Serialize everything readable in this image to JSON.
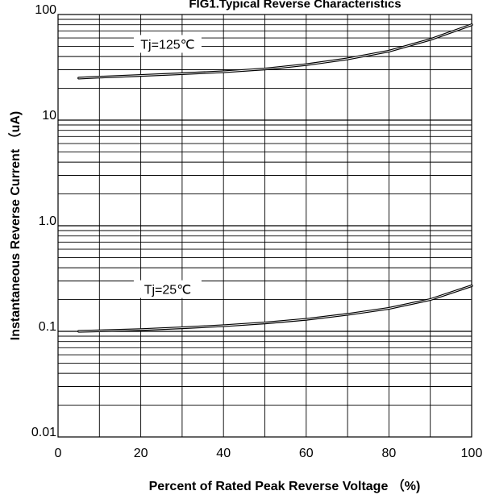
{
  "chart_data": {
    "type": "line",
    "title": "FIG1.Typical Reverse Characteristics",
    "xlabel": "Percent of Rated Peak Reverse Voltage （%)",
    "ylabel": "Instantaneous Reverse Current （uA)",
    "x_scale": "linear",
    "y_scale": "log",
    "xlim": [
      0,
      100
    ],
    "ylim": [
      0.01,
      100
    ],
    "x_ticks": [
      "0",
      "20",
      "40",
      "60",
      "80",
      "100"
    ],
    "y_ticks": [
      "0.01",
      "0.1",
      "1.0",
      "10",
      "100"
    ],
    "grid": true,
    "series": [
      {
        "name": "Tj=125℃",
        "x": [
          5,
          10,
          20,
          30,
          40,
          50,
          60,
          70,
          80,
          90,
          100
        ],
        "y": [
          25,
          25.5,
          26.5,
          27.5,
          28.7,
          30.5,
          33.5,
          38,
          45,
          58,
          80
        ]
      },
      {
        "name": "Tj=25℃",
        "x": [
          5,
          10,
          20,
          30,
          40,
          50,
          60,
          70,
          80,
          90,
          100
        ],
        "y": [
          0.1,
          0.101,
          0.104,
          0.108,
          0.113,
          0.12,
          0.13,
          0.145,
          0.165,
          0.2,
          0.27
        ]
      }
    ]
  }
}
